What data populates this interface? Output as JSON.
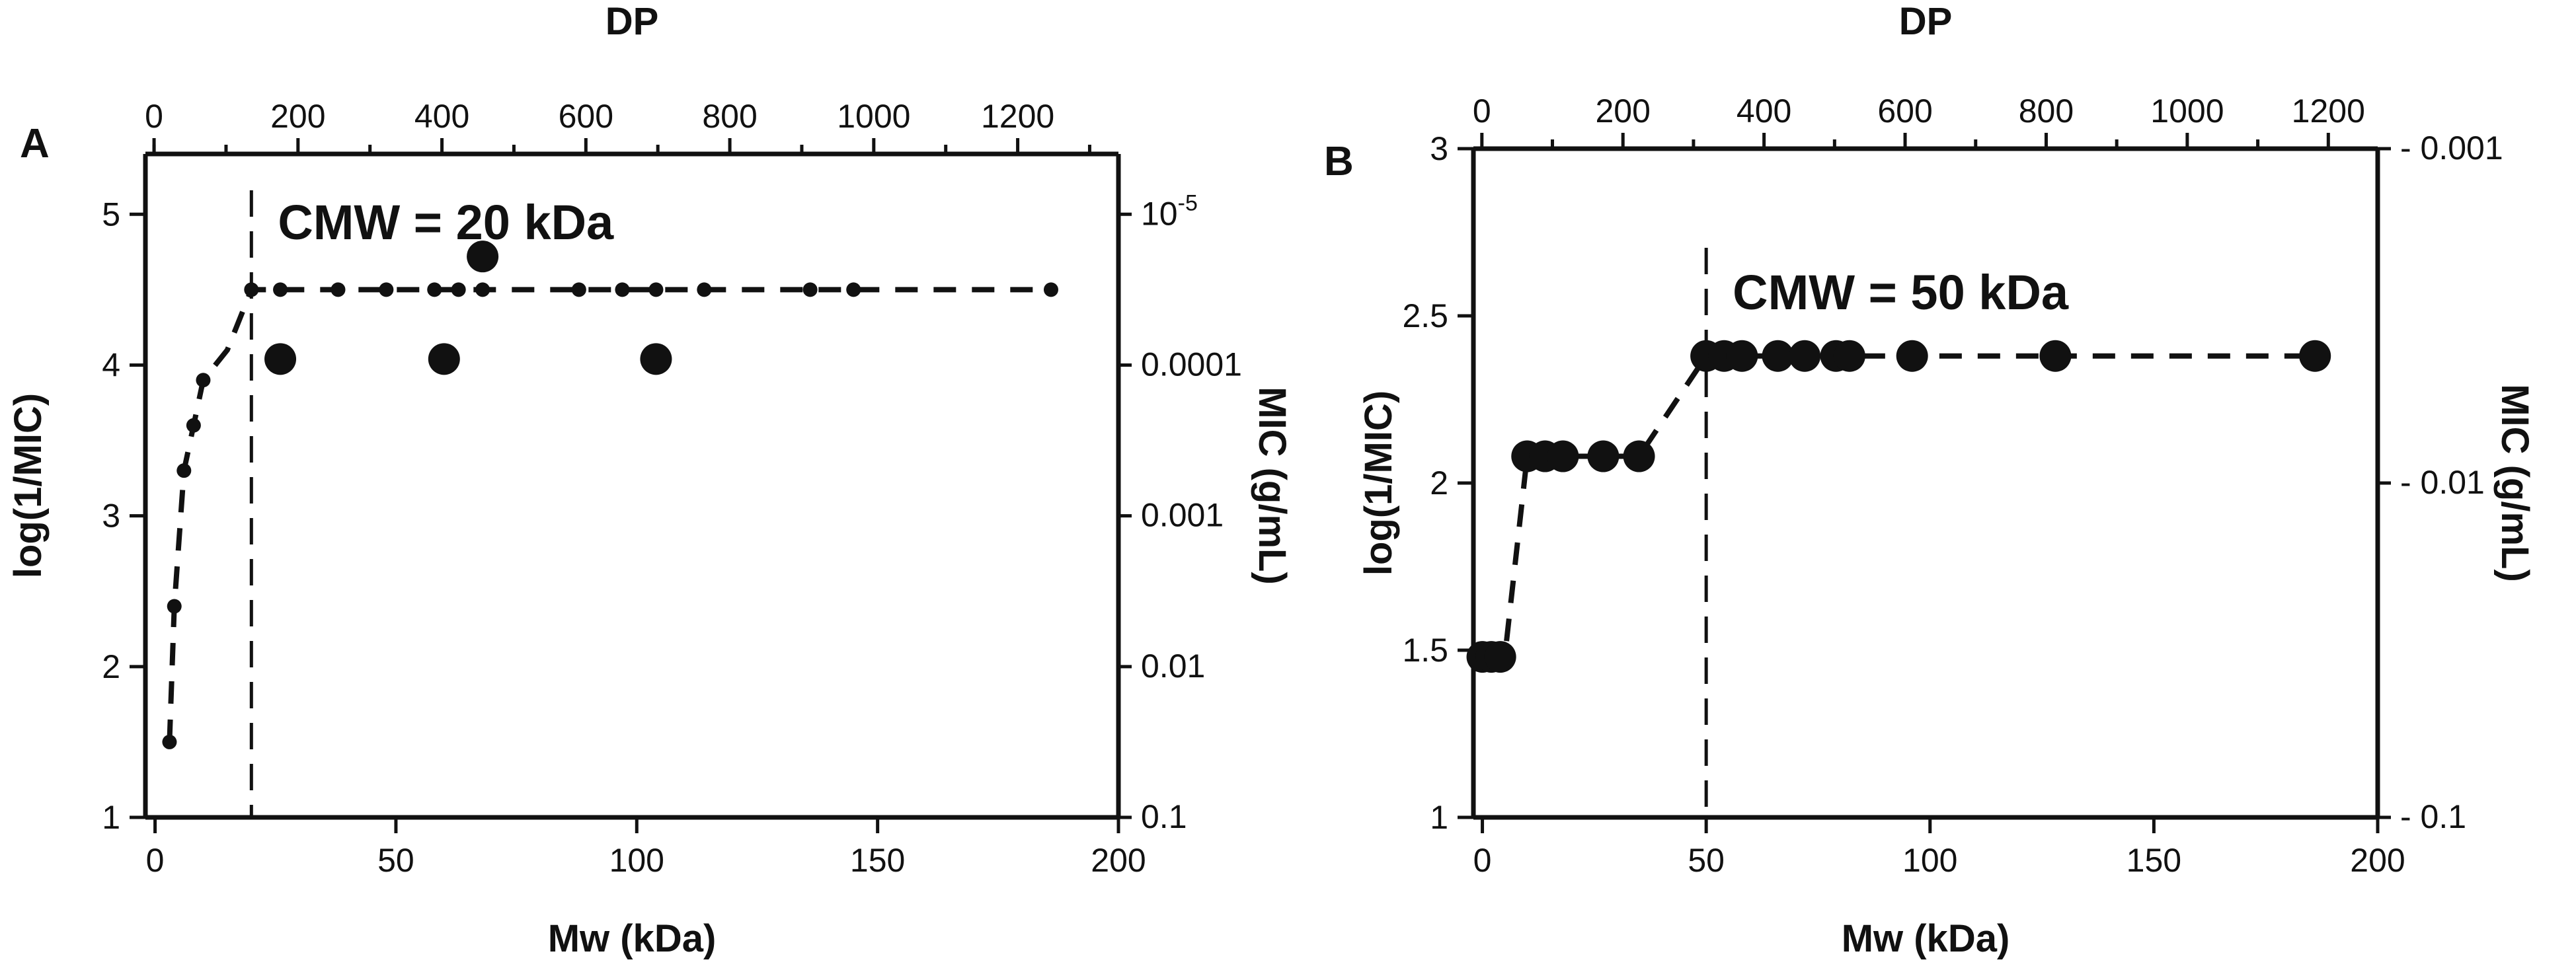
{
  "chart_data": [
    {
      "panel_label": "A",
      "type": "scatter",
      "xlabel": "Mw (kDa)",
      "ylabel": "log(1/MIC)",
      "top_xlabel": "DP",
      "right_ylabel": "MIC (g/mL)",
      "xlim": [
        -2,
        200
      ],
      "ylim": [
        1,
        5.4
      ],
      "top_xlim": [
        -12,
        1340
      ],
      "x_ticks": [
        "0",
        "50",
        "100",
        "150",
        "200"
      ],
      "y_ticks": [
        "1",
        "2",
        "3",
        "4",
        "5"
      ],
      "top_ticks": [
        "200",
        "400",
        "600",
        "800",
        "1000",
        "1200"
      ],
      "top_tick_values": [
        200,
        400,
        600,
        800,
        1000,
        1200
      ],
      "top_minor_tick_values": [
        0,
        100,
        300,
        500,
        700,
        900,
        1100,
        1300
      ],
      "top_unlabeled_tick": "0",
      "right_ticks": [
        {
          "label": "10",
          "sup": "-5",
          "log": 5
        },
        {
          "label": "0.0001",
          "sup": "",
          "log": 4
        },
        {
          "label": "0.001",
          "sup": "",
          "log": 3
        },
        {
          "label": "0.01",
          "sup": "",
          "log": 2
        },
        {
          "label": "0.1",
          "sup": "",
          "log": 1
        }
      ],
      "annotation": "CMW = 20 kDa",
      "cutoff_x": 20,
      "fit_line": [
        [
          3,
          1.5
        ],
        [
          4,
          2.4
        ],
        [
          6,
          3.3
        ],
        [
          8,
          3.6
        ],
        [
          10,
          3.9
        ],
        [
          15,
          4.1
        ],
        [
          20,
          4.5
        ],
        [
          186,
          4.5
        ]
      ],
      "small_points": [
        [
          3,
          1.5
        ],
        [
          4,
          2.4
        ],
        [
          6,
          3.3
        ],
        [
          8,
          3.6
        ],
        [
          10,
          3.9
        ],
        [
          20,
          4.5
        ],
        [
          26,
          4.5
        ],
        [
          38,
          4.5
        ],
        [
          48,
          4.5
        ],
        [
          58,
          4.5
        ],
        [
          63,
          4.5
        ],
        [
          68,
          4.5
        ],
        [
          88,
          4.5
        ],
        [
          97,
          4.5
        ],
        [
          104,
          4.5
        ],
        [
          114,
          4.5
        ],
        [
          136,
          4.5
        ],
        [
          145,
          4.5
        ],
        [
          186,
          4.5
        ]
      ],
      "large_points": [
        [
          26,
          4.04
        ],
        [
          60,
          4.04
        ],
        [
          68,
          4.72
        ],
        [
          104,
          4.04
        ]
      ]
    },
    {
      "panel_label": "B",
      "type": "scatter",
      "xlabel": "Mw (kDa)",
      "ylabel": "log(1/MIC)",
      "top_xlabel": "DP",
      "right_ylabel": "MIC (g/mL)",
      "xlim": [
        -2,
        200
      ],
      "ylim": [
        1,
        3
      ],
      "top_xlim": [
        -12,
        1270
      ],
      "x_ticks": [
        "0",
        "50",
        "100",
        "150",
        "200"
      ],
      "y_ticks": [
        "1",
        "1.5",
        "2",
        "2.5",
        "3"
      ],
      "y_tick_values": [
        1,
        1.5,
        2,
        2.5,
        3
      ],
      "top_ticks": [
        "0",
        "200",
        "400",
        "600",
        "800",
        "1000",
        "1200"
      ],
      "top_tick_values": [
        0,
        200,
        400,
        600,
        800,
        1000,
        1200
      ],
      "top_minor_tick_values": [
        100,
        300,
        500,
        700,
        900,
        1100
      ],
      "right_ticks": [
        {
          "label": "- 0.001",
          "sup": "",
          "log": 3
        },
        {
          "label": "- 0.01",
          "sup": "",
          "log": 2
        },
        {
          "label": "- 0.1",
          "sup": "",
          "log": 1
        }
      ],
      "annotation": "CMW = 50 kDa",
      "cutoff_x": 50,
      "fit_line": [
        [
          0,
          1.48
        ],
        [
          5,
          1.48
        ],
        [
          10,
          2.08
        ],
        [
          35,
          2.08
        ],
        [
          50,
          2.38
        ],
        [
          186,
          2.38
        ]
      ],
      "large_points": [
        [
          0,
          1.48
        ],
        [
          2,
          1.48
        ],
        [
          4,
          1.48
        ],
        [
          10,
          2.08
        ],
        [
          14,
          2.08
        ],
        [
          18,
          2.08
        ],
        [
          27,
          2.08
        ],
        [
          35,
          2.08
        ],
        [
          50,
          2.38
        ],
        [
          54,
          2.38
        ],
        [
          58,
          2.38
        ],
        [
          66,
          2.38
        ],
        [
          72,
          2.38
        ],
        [
          79,
          2.38
        ],
        [
          82,
          2.38
        ],
        [
          96,
          2.38
        ],
        [
          128,
          2.38
        ],
        [
          186,
          2.38
        ]
      ]
    }
  ]
}
